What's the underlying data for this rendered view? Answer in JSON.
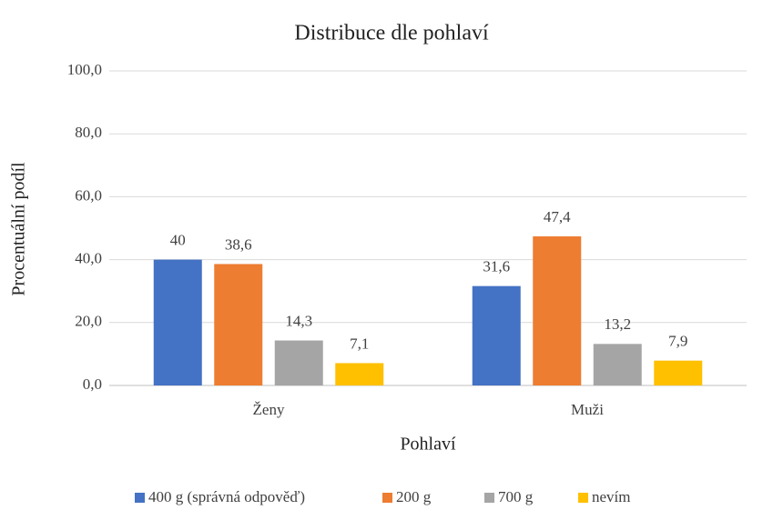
{
  "chart_data": {
    "type": "bar",
    "title": "Distribuce dle pohlaví",
    "x_label": "Pohlaví",
    "y_label": "Procentuální podíl",
    "categories": [
      "Ženy",
      "Muži"
    ],
    "series": [
      {
        "name": "400 g (správná odpověď)",
        "color": "#4472c4",
        "values": [
          40,
          31.6
        ],
        "value_labels": [
          "40",
          "31,6"
        ]
      },
      {
        "name": "200 g",
        "color": "#ed7d31",
        "values": [
          38.6,
          47.4
        ],
        "value_labels": [
          "38,6",
          "47,4"
        ]
      },
      {
        "name": "700 g",
        "color": "#a5a5a5",
        "values": [
          14.3,
          13.2
        ],
        "value_labels": [
          "14,3",
          "13,2"
        ]
      },
      {
        "name": "nevím",
        "color": "#ffc000",
        "values": [
          7.1,
          7.9
        ],
        "value_labels": [
          "7,1",
          "7,9"
        ]
      }
    ],
    "ylim": [
      0,
      100
    ],
    "yticks": [
      {
        "value": 0,
        "label": "0,0"
      },
      {
        "value": 20,
        "label": "20,0"
      },
      {
        "value": 40,
        "label": "40,0"
      },
      {
        "value": 60,
        "label": "60,0"
      },
      {
        "value": 80,
        "label": "80,0"
      },
      {
        "value": 100,
        "label": "100,0"
      }
    ],
    "grid": true,
    "legend": "bottom"
  }
}
